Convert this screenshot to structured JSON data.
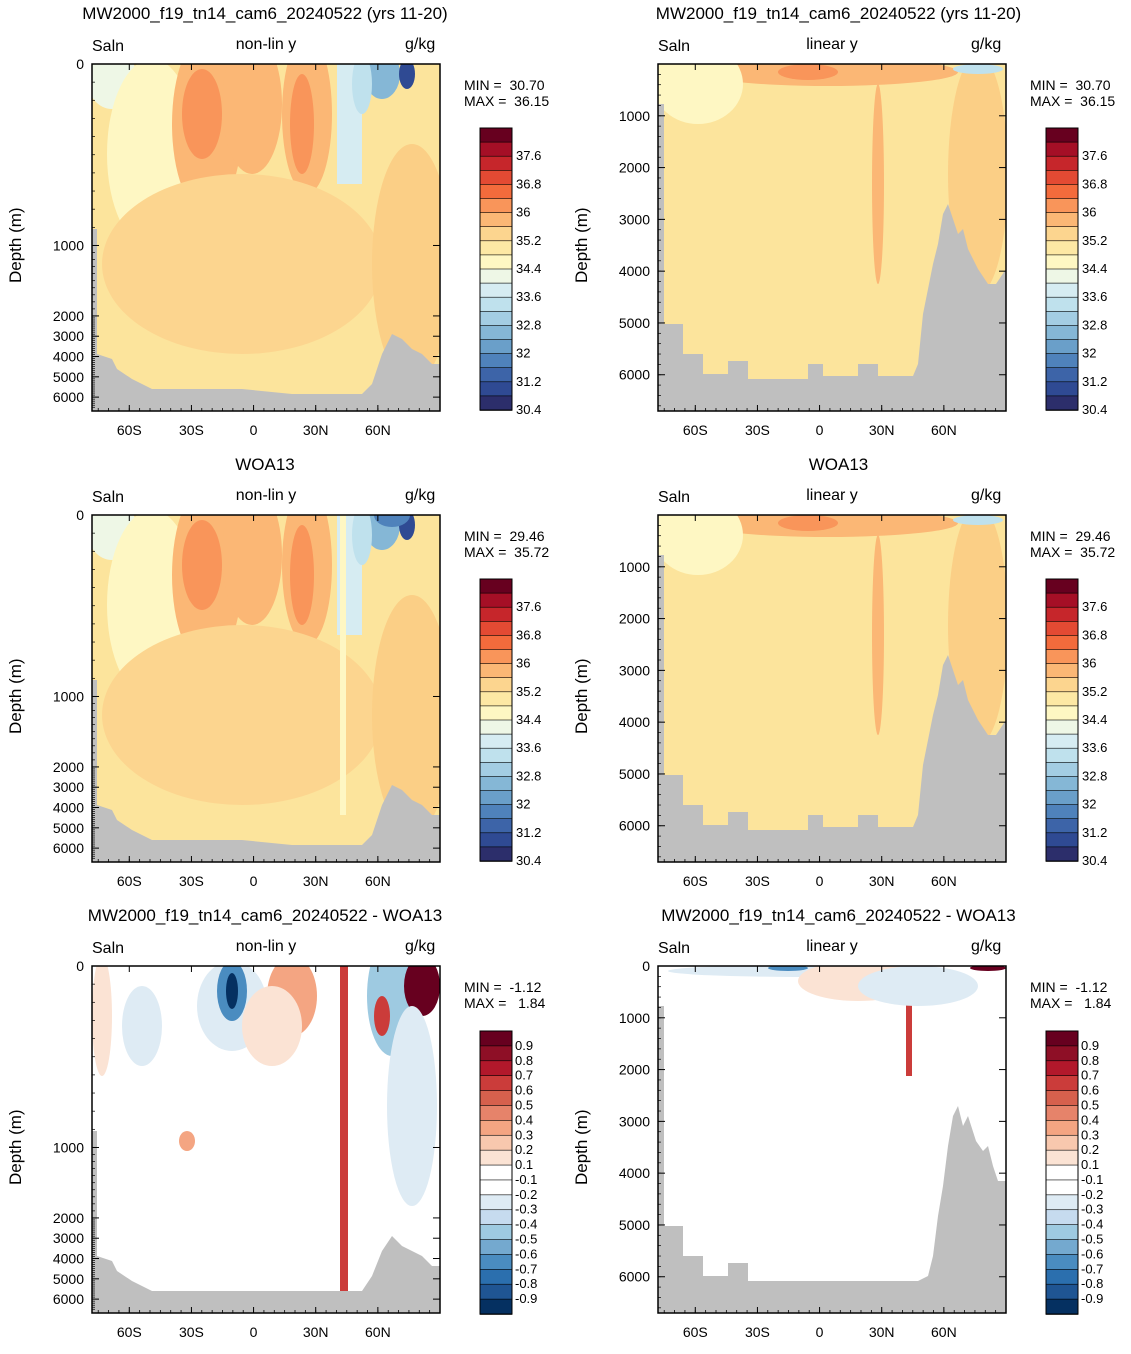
{
  "chart_data": [
    {
      "type": "heatmap",
      "title": "MW2000_f19_tn14_cam6_20240522 (yrs 11-20)",
      "variable": "Saln",
      "scale_label": "non-lin y",
      "units": "g/kg",
      "min_label": "MIN =  30.70",
      "max_label": "MAX =  36.15",
      "ylabel": "Depth (m)",
      "yscale": "non-linear",
      "x_ticks": [
        "60S",
        "30S",
        "0",
        "30N",
        "60N"
      ],
      "y_ticks": [
        "0",
        "1000",
        "2000",
        "3000",
        "4000",
        "5000",
        "6000"
      ],
      "colorbar": [
        "37.6",
        "36.8",
        "36",
        "35.2",
        "34.4",
        "33.6",
        "32.8",
        "32",
        "31.2",
        "30.4"
      ],
      "palette": "salinity"
    },
    {
      "type": "heatmap",
      "title": "MW2000_f19_tn14_cam6_20240522 (yrs 11-20)",
      "variable": "Saln",
      "scale_label": "linear y",
      "units": "g/kg",
      "min_label": "MIN =  30.70",
      "max_label": "MAX =  36.15",
      "ylabel": "Depth (m)",
      "yscale": "linear",
      "x_ticks": [
        "60S",
        "30S",
        "0",
        "30N",
        "60N"
      ],
      "y_ticks": [
        "1000",
        "2000",
        "3000",
        "4000",
        "5000",
        "6000"
      ],
      "colorbar": [
        "37.6",
        "36.8",
        "36",
        "35.2",
        "34.4",
        "33.6",
        "32.8",
        "32",
        "31.2",
        "30.4"
      ],
      "palette": "salinity"
    },
    {
      "type": "heatmap",
      "title": "WOA13",
      "variable": "Saln",
      "scale_label": "non-lin y",
      "units": "g/kg",
      "min_label": "MIN =  29.46",
      "max_label": "MAX =  35.72",
      "ylabel": "Depth (m)",
      "yscale": "non-linear",
      "x_ticks": [
        "60S",
        "30S",
        "0",
        "30N",
        "60N"
      ],
      "y_ticks": [
        "0",
        "1000",
        "2000",
        "3000",
        "4000",
        "5000",
        "6000"
      ],
      "colorbar": [
        "37.6",
        "36.8",
        "36",
        "35.2",
        "34.4",
        "33.6",
        "32.8",
        "32",
        "31.2",
        "30.4"
      ],
      "palette": "salinity"
    },
    {
      "type": "heatmap",
      "title": "WOA13",
      "variable": "Saln",
      "scale_label": "linear y",
      "units": "g/kg",
      "min_label": "MIN =  29.46",
      "max_label": "MAX =  35.72",
      "ylabel": "Depth (m)",
      "yscale": "linear",
      "x_ticks": [
        "60S",
        "30S",
        "0",
        "30N",
        "60N"
      ],
      "y_ticks": [
        "1000",
        "2000",
        "3000",
        "4000",
        "5000",
        "6000"
      ],
      "colorbar": [
        "37.6",
        "36.8",
        "36",
        "35.2",
        "34.4",
        "33.6",
        "32.8",
        "32",
        "31.2",
        "30.4"
      ],
      "palette": "salinity"
    },
    {
      "type": "heatmap",
      "title": "MW2000_f19_tn14_cam6_20240522 - WOA13",
      "variable": "Saln",
      "scale_label": "non-lin y",
      "units": "g/kg",
      "min_label": "MIN =  -1.12",
      "max_label": "MAX =   1.84",
      "ylabel": "Depth (m)",
      "yscale": "non-linear",
      "x_ticks": [
        "60S",
        "30S",
        "0",
        "30N",
        "60N"
      ],
      "y_ticks": [
        "0",
        "1000",
        "2000",
        "3000",
        "4000",
        "5000",
        "6000"
      ],
      "colorbar": [
        "0.9",
        "0.8",
        "0.7",
        "0.6",
        "0.5",
        "0.4",
        "0.3",
        "0.2",
        "0.1",
        "-0.1",
        "-0.2",
        "-0.3",
        "-0.4",
        "-0.5",
        "-0.6",
        "-0.7",
        "-0.8",
        "-0.9"
      ],
      "palette": "difference"
    },
    {
      "type": "heatmap",
      "title": "MW2000_f19_tn14_cam6_20240522 - WOA13",
      "variable": "Saln",
      "scale_label": "linear y",
      "units": "g/kg",
      "min_label": "MIN =  -1.12",
      "max_label": "MAX =   1.84",
      "ylabel": "Depth (m)",
      "yscale": "linear",
      "x_ticks": [
        "60S",
        "30S",
        "0",
        "30N",
        "60N"
      ],
      "y_ticks": [
        "0",
        "1000",
        "2000",
        "3000",
        "4000",
        "5000",
        "6000"
      ],
      "colorbar": [
        "0.9",
        "0.8",
        "0.7",
        "0.6",
        "0.5",
        "0.4",
        "0.3",
        "0.2",
        "0.1",
        "-0.1",
        "-0.2",
        "-0.3",
        "-0.4",
        "-0.5",
        "-0.6",
        "-0.7",
        "-0.8",
        "-0.9"
      ],
      "palette": "difference"
    }
  ],
  "colors": {
    "land": "#bfbfbf",
    "background_salt": "#fce49c",
    "salinity_scale": [
      "#67001f",
      "#a50f26",
      "#c6262b",
      "#e34a33",
      "#f36b3c",
      "#f9955a",
      "#fbb775",
      "#fcd58f",
      "#fde8a4",
      "#fef7c3",
      "#eef7e6",
      "#d6ecf2",
      "#bfe1ed",
      "#a3cde3",
      "#85b7d6",
      "#6a9fc9",
      "#4f82bb",
      "#3d64a8",
      "#2f4a93",
      "#2c2e6b"
    ],
    "difference_scale": [
      "#67001f",
      "#8e0f26",
      "#b2182b",
      "#cb3c3a",
      "#d6604d",
      "#e6836a",
      "#f4a582",
      "#f8c8ae",
      "#fbe3d4",
      "#ffffff",
      "#ffffff",
      "#deebf4",
      "#c6dbef",
      "#9ecae1",
      "#74a9cf",
      "#4a8cc0",
      "#2b6fae",
      "#1f5593",
      "#053061"
    ]
  }
}
